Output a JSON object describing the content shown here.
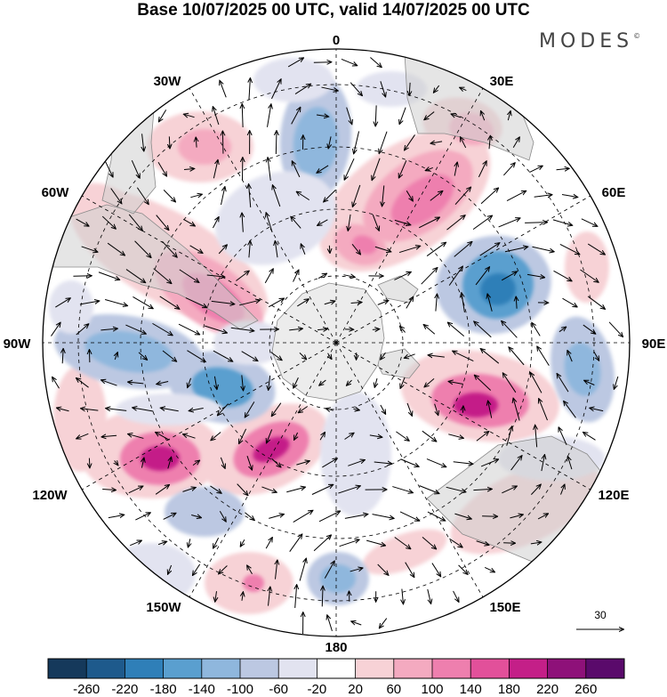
{
  "title": "Base 10/07/2025 00 UTC, valid 14/07/2025 00 UTC",
  "brand": "MODES",
  "brand_mark": "©",
  "longitude_labels": {
    "lon_0": "0",
    "lon_30e": "30E",
    "lon_60e": "60E",
    "lon_90e": "90E",
    "lon_120e": "120E",
    "lon_150e": "150E",
    "lon_180": "180",
    "lon_150w": "150W",
    "lon_120w": "120W",
    "lon_90w": "90W",
    "lon_60w": "60W",
    "lon_30w": "30W"
  },
  "vector_reference": "30",
  "colorbar": {
    "ticks": [
      "-260",
      "-220",
      "-180",
      "-140",
      "-100",
      "-60",
      "-20",
      "20",
      "60",
      "100",
      "140",
      "180",
      "220",
      "260"
    ],
    "colors": [
      "#15395b",
      "#1e5a8c",
      "#2f7fb8",
      "#5a9fcf",
      "#8fb7dd",
      "#bcc8e2",
      "#e2e3f0",
      "#ffffff",
      "#f7d2d6",
      "#f4aac0",
      "#ee7fae",
      "#e2509a",
      "#c41f88",
      "#8e1179",
      "#5a0a6b"
    ]
  },
  "colors": {
    "land": "#cfcfcf",
    "land_overlay_opacity": 0.55,
    "antarctica": "#ececec",
    "grid": "#000000",
    "arrow": "#000000"
  }
}
